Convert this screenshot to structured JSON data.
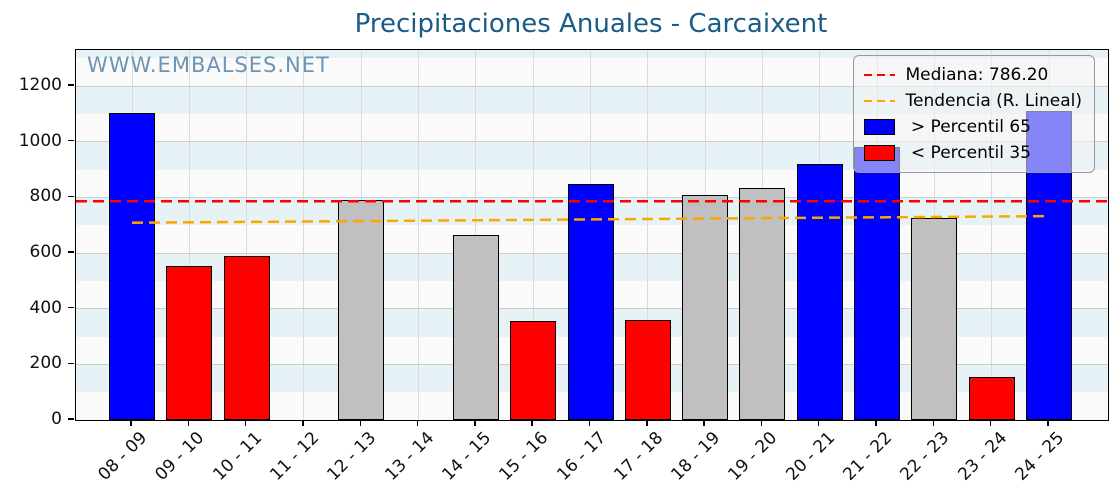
{
  "chart_data": {
    "type": "bar",
    "title": "Precipitaciones Anuales - Carcaixent",
    "watermark": "WWW.EMBALSES.NET",
    "xlabel": "",
    "ylabel": "",
    "ylim": [
      0,
      1330
    ],
    "yticks": [
      0,
      200,
      400,
      600,
      800,
      1000,
      1200
    ],
    "grid": true,
    "categories": [
      "08 - 09",
      "09 - 10",
      "10 - 11",
      "11 - 12",
      "12 - 13",
      "13 - 14",
      "14 - 15",
      "15 - 16",
      "16 - 17",
      "17 - 18",
      "18 - 19",
      "19 - 20",
      "20 - 21",
      "21 - 22",
      "22 - 23",
      "23 - 24",
      "24 - 25"
    ],
    "values": [
      1105,
      555,
      590,
      0,
      790,
      0,
      665,
      355,
      850,
      360,
      810,
      835,
      920,
      980,
      725,
      155,
      1110
    ],
    "bar_states": [
      "above",
      "below",
      "below",
      "zero",
      "normal",
      "zero",
      "normal",
      "below",
      "above",
      "below",
      "normal",
      "normal",
      "above",
      "above",
      "normal",
      "below",
      "above"
    ],
    "median": {
      "value": 786.2,
      "label": "Mediana: 786.20"
    },
    "trend": {
      "label": "Tendencia (R. Lineal)",
      "start_value": 709,
      "end_value": 733
    },
    "legend": {
      "position": "upper right",
      "items": [
        {
          "sample": "dashed-line",
          "color": "#ff0000",
          "label": "Mediana: 786.20"
        },
        {
          "sample": "dashed-line",
          "color": "#ffa500",
          "label": "Tendencia (R. Lineal)"
        },
        {
          "sample": "patch",
          "color": "#0000ff",
          "label": " > Percentil 65"
        },
        {
          "sample": "patch",
          "color": "#ff0000",
          "label": " < Percentil 35"
        }
      ]
    },
    "colors": {
      "above": "#0000ff",
      "below": "#ff0000",
      "normal": "#c0c0c0",
      "bar_edge": "#000000",
      "median_line": "#ff0000",
      "trend_line": "#ffa500",
      "title": "#1a5c85",
      "watermark": "#6e94b4",
      "band": "#e7f2f7",
      "plot_bg": "#fafafa"
    }
  }
}
